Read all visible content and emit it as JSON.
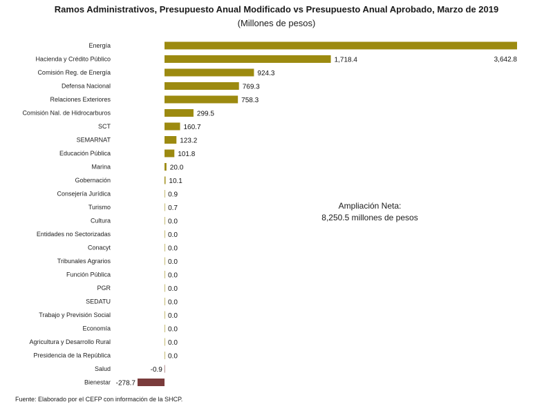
{
  "header": {
    "title": "Ramos Administrativos, Presupuesto Anual Modificado vs Presupuesto Anual Aprobado, Marzo de 2019",
    "subtitle": "(Millones de pesos)"
  },
  "note": {
    "line1": "Ampliación Neta:",
    "line2": "8,250.5 millones de pesos"
  },
  "source": "Fuente: Elaborado por el CEFP con información de la SHCP.",
  "colors": {
    "positive": "#9c8a10",
    "negative": "#7a3b3b"
  },
  "chart_data": {
    "type": "bar",
    "orientation": "horizontal",
    "title": "Ramos Administrativos, Presupuesto Anual Modificado vs Presupuesto Anual Aprobado, Marzo de 2019",
    "subtitle": "(Millones de pesos)",
    "categories": [
      "Energía",
      "Hacienda y Crédito Público",
      "Comisión Reg. de Energía",
      "Defensa Nacional",
      "Relaciones Exteriores",
      "Comisión Nal. de Hidrocarburos",
      "SCT",
      "SEMARNAT",
      "Educación Pública",
      "Marina",
      "Gobernación",
      "Consejería Jurídica",
      "Turismo",
      "Cultura",
      "Entidades no Sectorizadas",
      "Conacyt",
      "Tribunales Agrarios",
      "Función Pública",
      "PGR",
      "SEDATU",
      "Trabajo y Previsión Social",
      "Economía",
      "Agricultura y Desarrollo Rural",
      "Presidencia de la República",
      "Salud",
      "Bienestar"
    ],
    "values": [
      3642.8,
      1718.4,
      924.3,
      769.3,
      758.3,
      299.5,
      160.7,
      123.2,
      101.8,
      20.0,
      10.1,
      0.9,
      0.7,
      0.0,
      0.0,
      0.0,
      0.0,
      0.0,
      0.0,
      0.0,
      0.0,
      0.0,
      0.0,
      0.0,
      -0.9,
      -278.7
    ],
    "value_labels": [
      "3,642.8",
      "1,718.4",
      "924.3",
      "769.3",
      "758.3",
      "299.5",
      "160.7",
      "123.2",
      "101.8",
      "20.0",
      "10.1",
      "0.9",
      "0.7",
      "0.0",
      "0.0",
      "0.0",
      "0.0",
      "0.0",
      "0.0",
      "0.0",
      "0.0",
      "0.0",
      "0.0",
      "0.0",
      "-0.9",
      "-278.7"
    ],
    "xlim": [
      -278.7,
      3642.8
    ],
    "grid": false,
    "legend": "none"
  }
}
